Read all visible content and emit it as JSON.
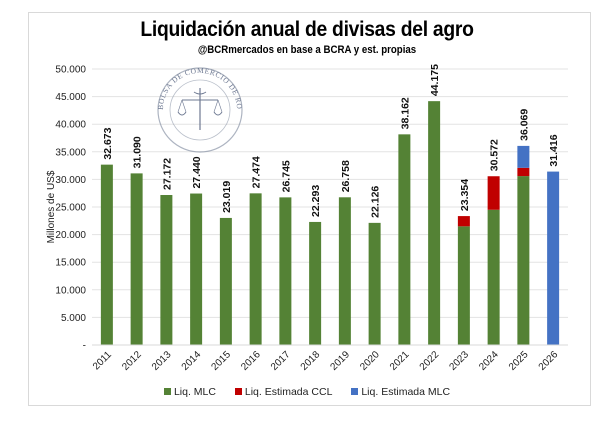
{
  "chart_data": {
    "type": "bar",
    "stacked": true,
    "title": "Liquidación anual de divisas del agro",
    "subtitle": "@BCRmercados  en base a BCRA y est. propias",
    "xlabel": "",
    "ylabel": "Millones de US$",
    "ylim": [
      0,
      50000
    ],
    "yticks": [
      0,
      5000,
      10000,
      15000,
      20000,
      25000,
      30000,
      35000,
      40000,
      45000,
      50000
    ],
    "ytick_labels": [
      "-",
      "5.000",
      "10.000",
      "15.000",
      "20.000",
      "25.000",
      "30.000",
      "35.000",
      "40.000",
      "45.000",
      "50.000"
    ],
    "grid": true,
    "legend_position": "bottom",
    "categories": [
      "2011",
      "2012",
      "2013",
      "2014",
      "2015",
      "2016",
      "2017",
      "2018",
      "2019",
      "2020",
      "2021",
      "2022",
      "2023",
      "2024",
      "2025",
      "2026"
    ],
    "series": [
      {
        "name": "Liq. MLC",
        "color": "#548235",
        "values": [
          32673,
          31090,
          27172,
          27440,
          23019,
          27474,
          26745,
          22293,
          26758,
          22126,
          38162,
          44175,
          21500,
          24500,
          30600,
          0
        ]
      },
      {
        "name": "Liq. Estimada CCL",
        "color": "#c00000",
        "values": [
          0,
          0,
          0,
          0,
          0,
          0,
          0,
          0,
          0,
          0,
          0,
          0,
          1854,
          6072,
          1500,
          0
        ]
      },
      {
        "name": "Liq. Estimada MLC",
        "color": "#4472c4",
        "values": [
          0,
          0,
          0,
          0,
          0,
          0,
          0,
          0,
          0,
          0,
          0,
          0,
          0,
          0,
          3969,
          31416
        ]
      }
    ],
    "totals": [
      32673,
      31090,
      27172,
      27440,
      23019,
      27474,
      26745,
      22293,
      26758,
      22126,
      38162,
      44175,
      23354,
      30572,
      36069,
      31416
    ],
    "total_labels": [
      "32.673",
      "31.090",
      "27.172",
      "27.440",
      "23.019",
      "27.474",
      "26.745",
      "22.293",
      "26.758",
      "22.126",
      "38.162",
      "44.175",
      "23.354",
      "30.572",
      "36.069",
      "31.416"
    ],
    "watermark": "BOLSA DE COMERCIO DE ROSARIO"
  }
}
